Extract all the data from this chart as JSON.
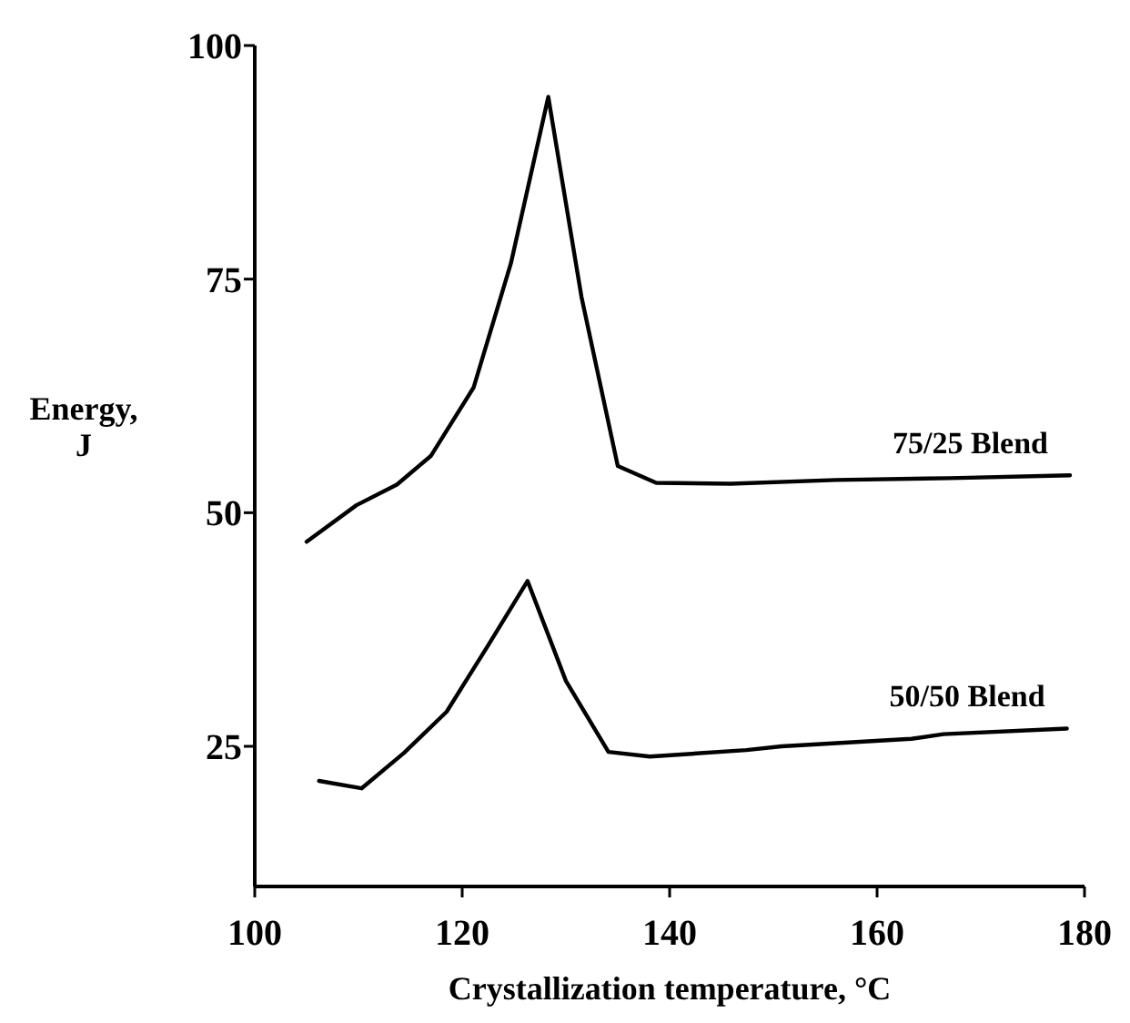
{
  "chart_data": {
    "type": "line",
    "xlabel": "Crystallization temperature, °C",
    "ylabel": "Energy, J",
    "xlim": [
      100,
      180
    ],
    "xticks": [
      100,
      120,
      140,
      160,
      180
    ],
    "ylim": [
      10,
      100
    ],
    "yticks": [
      25,
      50,
      75,
      100
    ],
    "grid": false,
    "legend": false,
    "marker": "none",
    "line_style": "solid",
    "series": [
      {
        "name": "75/25 Blend",
        "color": "#000000",
        "x": [
          105.0,
          109.8,
          113.7,
          117.0,
          121.1,
          124.7,
          128.3,
          131.5,
          135.0,
          138.7,
          145.9,
          156.0,
          167.0,
          178.6
        ],
        "values": [
          46.9,
          50.8,
          53.0,
          56.1,
          63.4,
          76.7,
          94.5,
          73.1,
          55.0,
          53.2,
          53.1,
          53.5,
          53.7,
          54.0
        ]
      },
      {
        "name": "50/50 Blend",
        "color": "#000000",
        "x": [
          106.2,
          110.3,
          114.4,
          118.5,
          122.5,
          126.3,
          130.0,
          134.1,
          138.1,
          147.4,
          150.8,
          163.3,
          166.4,
          178.3
        ],
        "values": [
          21.3,
          20.5,
          24.3,
          28.7,
          35.8,
          42.7,
          32.0,
          24.4,
          23.9,
          24.6,
          25.0,
          25.8,
          26.3,
          26.9
        ]
      }
    ]
  }
}
